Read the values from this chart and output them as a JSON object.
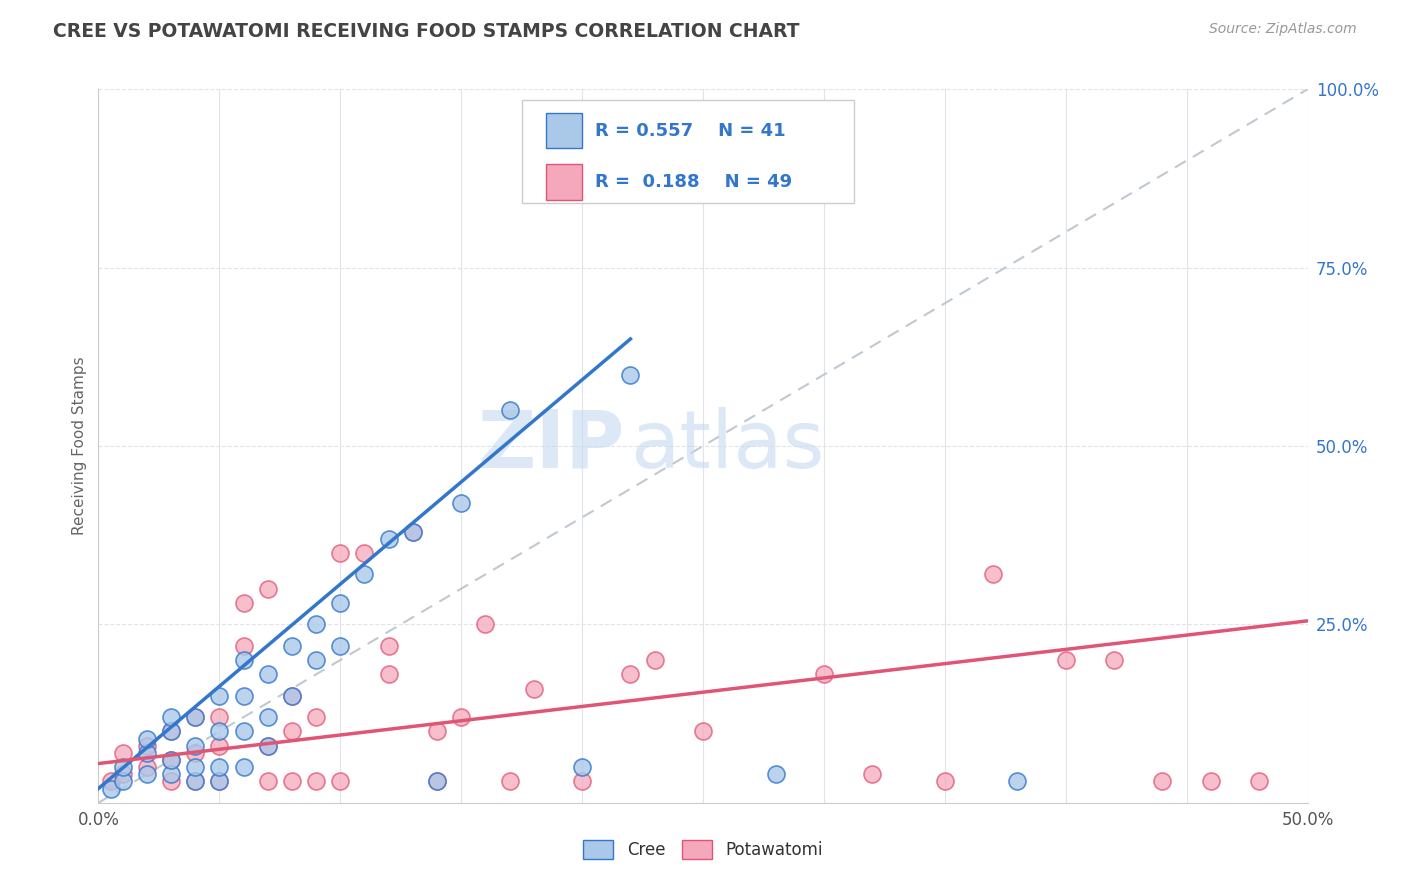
{
  "title": "CREE VS POTAWATOMI RECEIVING FOOD STAMPS CORRELATION CHART",
  "source_text": "Source: ZipAtlas.com",
  "ylabel": "Receiving Food Stamps",
  "xlim": [
    0.0,
    0.5
  ],
  "ylim": [
    0.0,
    1.0
  ],
  "xticks": [
    0.0,
    0.05,
    0.1,
    0.15,
    0.2,
    0.25,
    0.3,
    0.35,
    0.4,
    0.45,
    0.5
  ],
  "xticklabels": [
    "0.0%",
    "",
    "",
    "",
    "",
    "",
    "",
    "",
    "",
    "",
    "50.0%"
  ],
  "yticks": [
    0.0,
    0.25,
    0.5,
    0.75,
    1.0
  ],
  "yticklabels": [
    "",
    "25.0%",
    "50.0%",
    "75.0%",
    "100.0%"
  ],
  "cree_color": "#aac8e8",
  "potawatomi_color": "#f5a8bc",
  "cree_line_color": "#3377cc",
  "potawatomi_line_color": "#e05575",
  "ref_line_color": "#c0c8d0",
  "title_color": "#444444",
  "source_color": "#999999",
  "legend_text_color": "#3377cc",
  "cree_R": 0.557,
  "cree_N": 41,
  "potawatomi_R": 0.188,
  "potawatomi_N": 49,
  "background_color": "#ffffff",
  "grid_color": "#e0e4e8",
  "watermark_zip": "ZIP",
  "watermark_atlas": "atlas",
  "cree_line_x0": 0.0,
  "cree_line_y0": 0.02,
  "cree_line_x1": 0.22,
  "cree_line_y1": 0.65,
  "pota_line_x0": 0.0,
  "pota_line_y0": 0.055,
  "pota_line_x1": 0.5,
  "pota_line_y1": 0.255,
  "cree_x": [
    0.005,
    0.01,
    0.01,
    0.02,
    0.02,
    0.02,
    0.03,
    0.03,
    0.03,
    0.03,
    0.04,
    0.04,
    0.04,
    0.04,
    0.05,
    0.05,
    0.05,
    0.05,
    0.06,
    0.06,
    0.06,
    0.06,
    0.07,
    0.07,
    0.07,
    0.08,
    0.08,
    0.09,
    0.09,
    0.1,
    0.1,
    0.11,
    0.12,
    0.13,
    0.14,
    0.15,
    0.17,
    0.2,
    0.22,
    0.28,
    0.38
  ],
  "cree_y": [
    0.02,
    0.03,
    0.05,
    0.04,
    0.07,
    0.09,
    0.04,
    0.06,
    0.1,
    0.12,
    0.03,
    0.05,
    0.08,
    0.12,
    0.03,
    0.05,
    0.1,
    0.15,
    0.05,
    0.1,
    0.15,
    0.2,
    0.08,
    0.12,
    0.18,
    0.15,
    0.22,
    0.2,
    0.25,
    0.22,
    0.28,
    0.32,
    0.37,
    0.38,
    0.03,
    0.42,
    0.55,
    0.05,
    0.6,
    0.04,
    0.03
  ],
  "potawatomi_x": [
    0.005,
    0.01,
    0.01,
    0.02,
    0.02,
    0.03,
    0.03,
    0.03,
    0.04,
    0.04,
    0.04,
    0.05,
    0.05,
    0.05,
    0.06,
    0.06,
    0.07,
    0.07,
    0.07,
    0.08,
    0.08,
    0.08,
    0.09,
    0.09,
    0.1,
    0.1,
    0.11,
    0.12,
    0.12,
    0.13,
    0.14,
    0.14,
    0.15,
    0.16,
    0.17,
    0.18,
    0.2,
    0.22,
    0.23,
    0.25,
    0.3,
    0.32,
    0.35,
    0.37,
    0.4,
    0.42,
    0.44,
    0.46,
    0.48
  ],
  "potawatomi_y": [
    0.03,
    0.04,
    0.07,
    0.05,
    0.08,
    0.03,
    0.06,
    0.1,
    0.03,
    0.07,
    0.12,
    0.03,
    0.08,
    0.12,
    0.22,
    0.28,
    0.03,
    0.08,
    0.3,
    0.03,
    0.1,
    0.15,
    0.03,
    0.12,
    0.03,
    0.35,
    0.35,
    0.18,
    0.22,
    0.38,
    0.03,
    0.1,
    0.12,
    0.25,
    0.03,
    0.16,
    0.03,
    0.18,
    0.2,
    0.1,
    0.18,
    0.04,
    0.03,
    0.32,
    0.2,
    0.2,
    0.03,
    0.03,
    0.03
  ]
}
